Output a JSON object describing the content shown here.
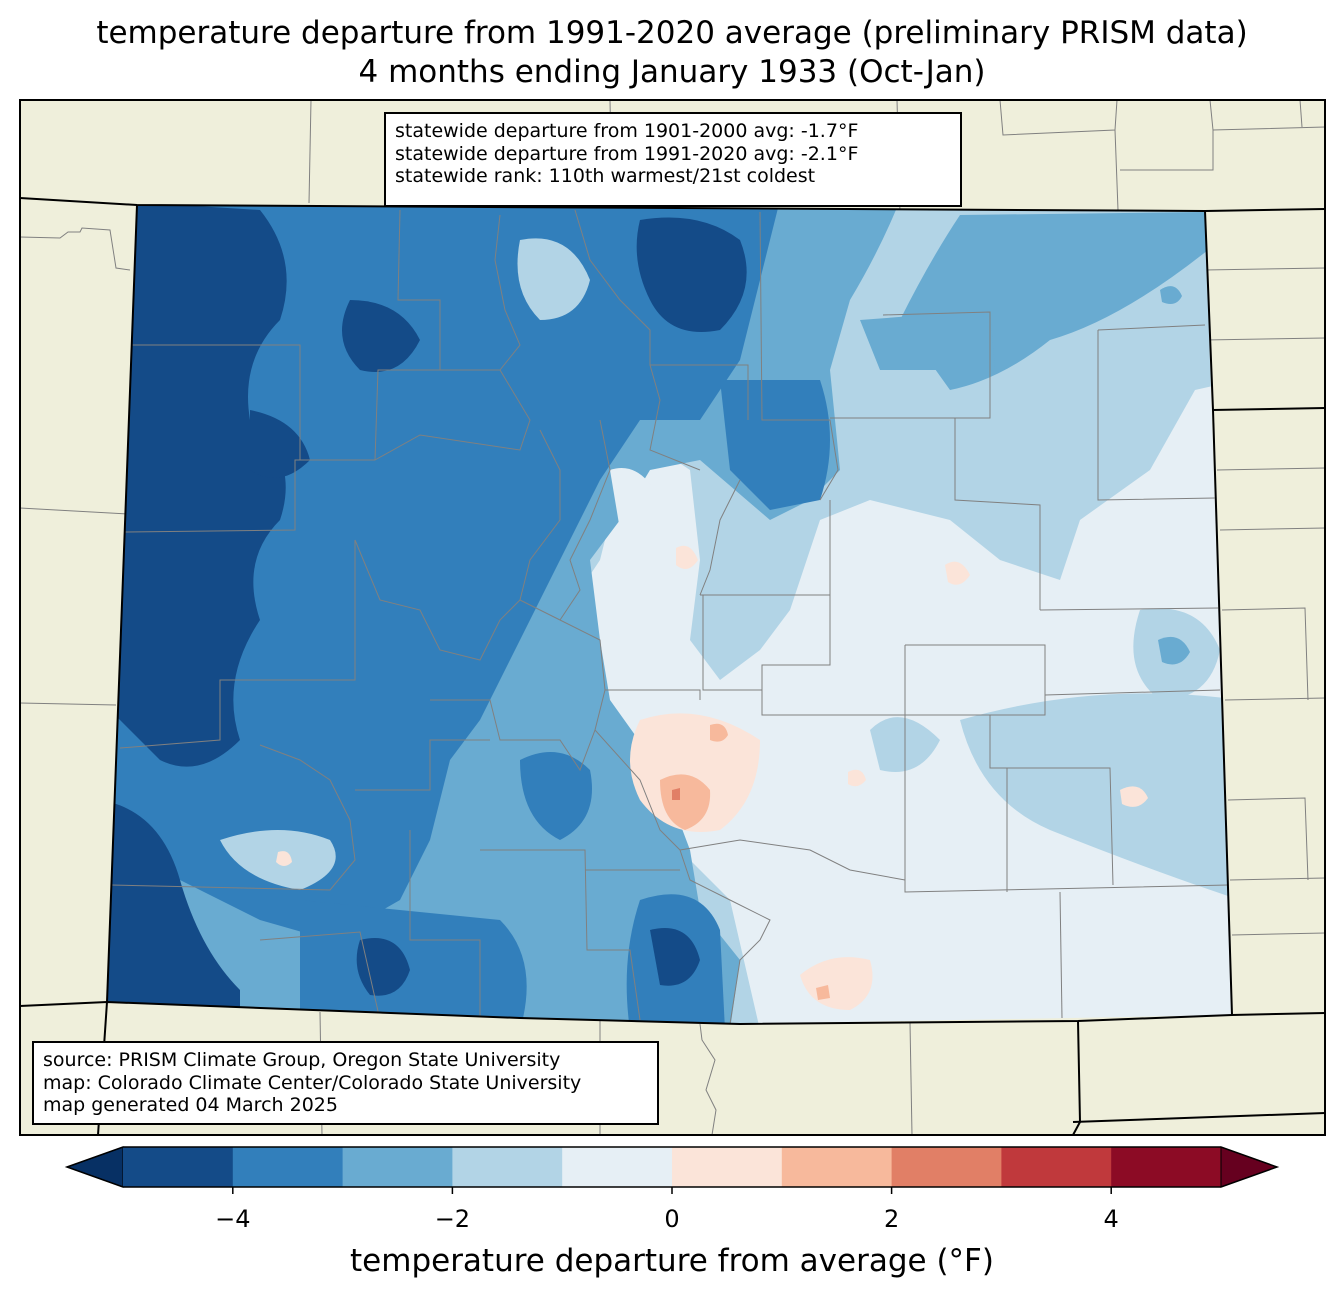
{
  "title": {
    "line1": "temperature departure from 1991-2020 average (preliminary PRISM data)",
    "line2": "4 months ending January 1933 (Oct-Jan)"
  },
  "stats": {
    "line1": "statewide departure from 1901-2000 avg: -1.7°F",
    "line2": "statewide departure from 1991-2020 avg: -2.1°F",
    "line3": "statewide rank: 110th warmest/21st coldest"
  },
  "credits": {
    "line1": "source: PRISM Climate Group, Oregon State University",
    "line2": "map: Colorado Climate Center/Colorado State University",
    "line3": "map generated 04 March 2025"
  },
  "colorbar": {
    "label": "temperature departure from average (°F)",
    "min": -5,
    "max": 5,
    "step": 1,
    "ticks": [
      -4,
      -2,
      0,
      2,
      4
    ],
    "tick_labels": [
      "−4",
      "−2",
      "0",
      "2",
      "4"
    ],
    "under_color": "#073064",
    "over_color": "#66001f",
    "bin_colors": [
      "#144b88",
      "#327fbb",
      "#69abd1",
      "#b2d4e6",
      "#e6eff5",
      "#fbe4d9",
      "#f7b99c",
      "#e17f66",
      "#c0393c",
      "#8c0b25"
    ]
  },
  "colors": {
    "background_land": "#efefdb",
    "state_border": "#000000",
    "county_border": "#808080"
  }
}
